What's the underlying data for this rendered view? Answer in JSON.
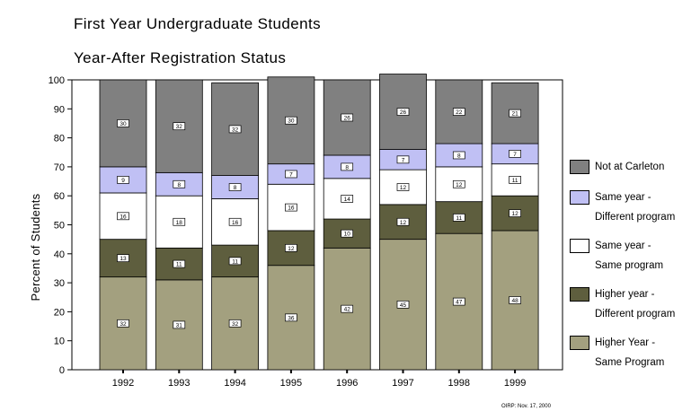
{
  "title": "First Year Undergraduate Students",
  "subtitle": "Year-After Registration Status",
  "credit": "OIRP: Nov. 17, 2000",
  "chart_data": {
    "type": "bar",
    "stacked": true,
    "categories": [
      "1992",
      "1993",
      "1994",
      "1995",
      "1996",
      "1997",
      "1998",
      "1999"
    ],
    "ylabel": "Percent of Students",
    "xlabel": "",
    "ylim": [
      0,
      100
    ],
    "yticks": [
      "0",
      "10",
      "20",
      "30",
      "40",
      "50",
      "60",
      "70",
      "80",
      "90",
      "100"
    ],
    "grid": false,
    "legend_position": "right",
    "series": [
      {
        "name": "Higher Year - Same Program",
        "color": "#a3a07f",
        "values": [
          32,
          31,
          32,
          36,
          42,
          45,
          47,
          48
        ]
      },
      {
        "name": "Higher year - Different program",
        "color": "#5e5e3e",
        "values": [
          13,
          11,
          11,
          12,
          10,
          12,
          11,
          12
        ]
      },
      {
        "name": "Same year - Same program",
        "color": "#ffffff",
        "values": [
          16,
          18,
          16,
          16,
          14,
          12,
          12,
          11
        ]
      },
      {
        "name": "Same year - Different program",
        "color": "#c0c0f4",
        "values": [
          9,
          8,
          8,
          7,
          8,
          7,
          8,
          7
        ]
      },
      {
        "name": "Not at Carleton",
        "color": "#808080",
        "values": [
          30,
          32,
          32,
          30,
          26,
          26,
          22,
          21
        ]
      }
    ]
  },
  "legend": [
    {
      "label": "Not at Carleton",
      "color": "#808080"
    },
    {
      "label": "Same year   -\nDifferent program",
      "color": "#c0c0f4"
    },
    {
      "label": "Same year   -\nSame program",
      "color": "#ffffff"
    },
    {
      "label": "Higher year -\nDifferent program",
      "color": "#5e5e3e"
    },
    {
      "label": "Higher Year -\nSame Program",
      "color": "#a3a07f"
    }
  ]
}
